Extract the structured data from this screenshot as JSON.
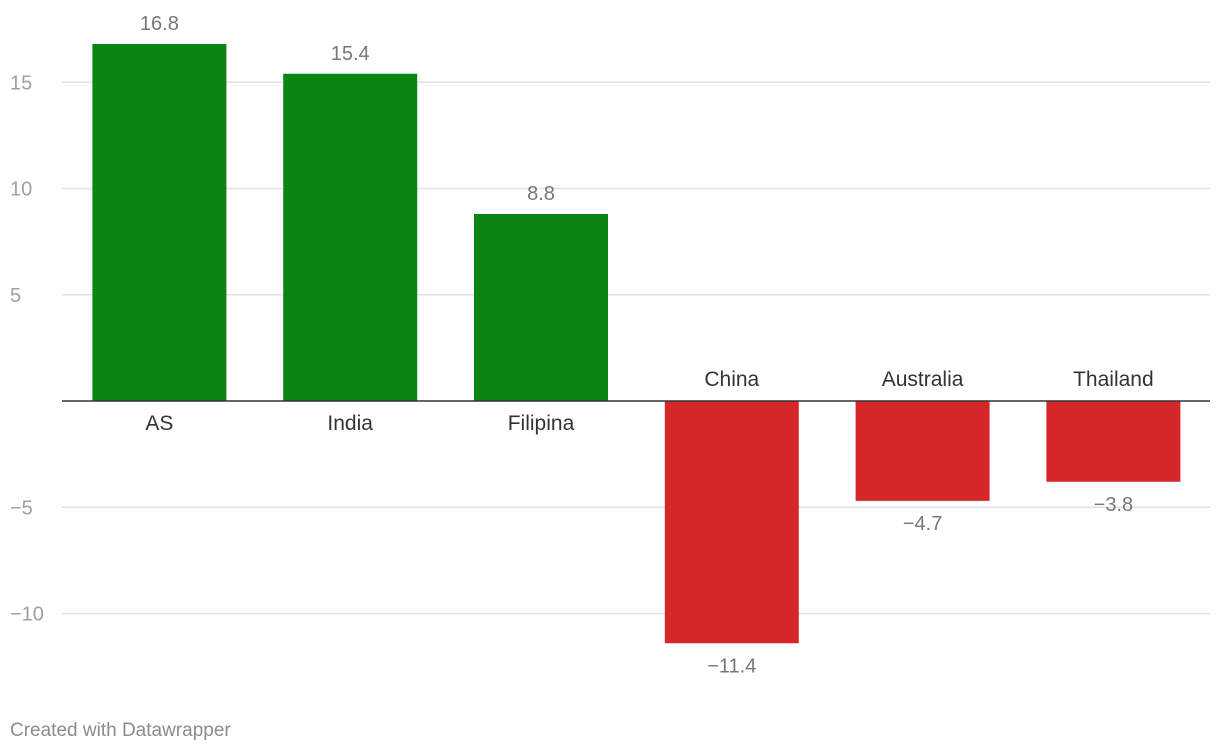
{
  "chart_data": {
    "type": "bar",
    "categories": [
      "AS",
      "India",
      "Filipina",
      "China",
      "Australia",
      "Thailand"
    ],
    "values": [
      16.8,
      15.4,
      8.8,
      -11.4,
      -4.7,
      -3.8
    ],
    "value_labels": [
      "16.8",
      "15.4",
      "8.8",
      "−11.4",
      "−4.7",
      "−3.8"
    ],
    "yticks": [
      15,
      10,
      5,
      -5,
      -10
    ],
    "ytick_labels": [
      "15",
      "10",
      "5",
      "−5",
      "−10"
    ],
    "ylim": [
      -13,
      18
    ],
    "grid": true,
    "colors": {
      "positive": "#0a8412",
      "negative": "#d62728",
      "grid": "#e2e2e2",
      "baseline": "#333333"
    }
  },
  "footer": {
    "credit": "Created with Datawrapper"
  }
}
